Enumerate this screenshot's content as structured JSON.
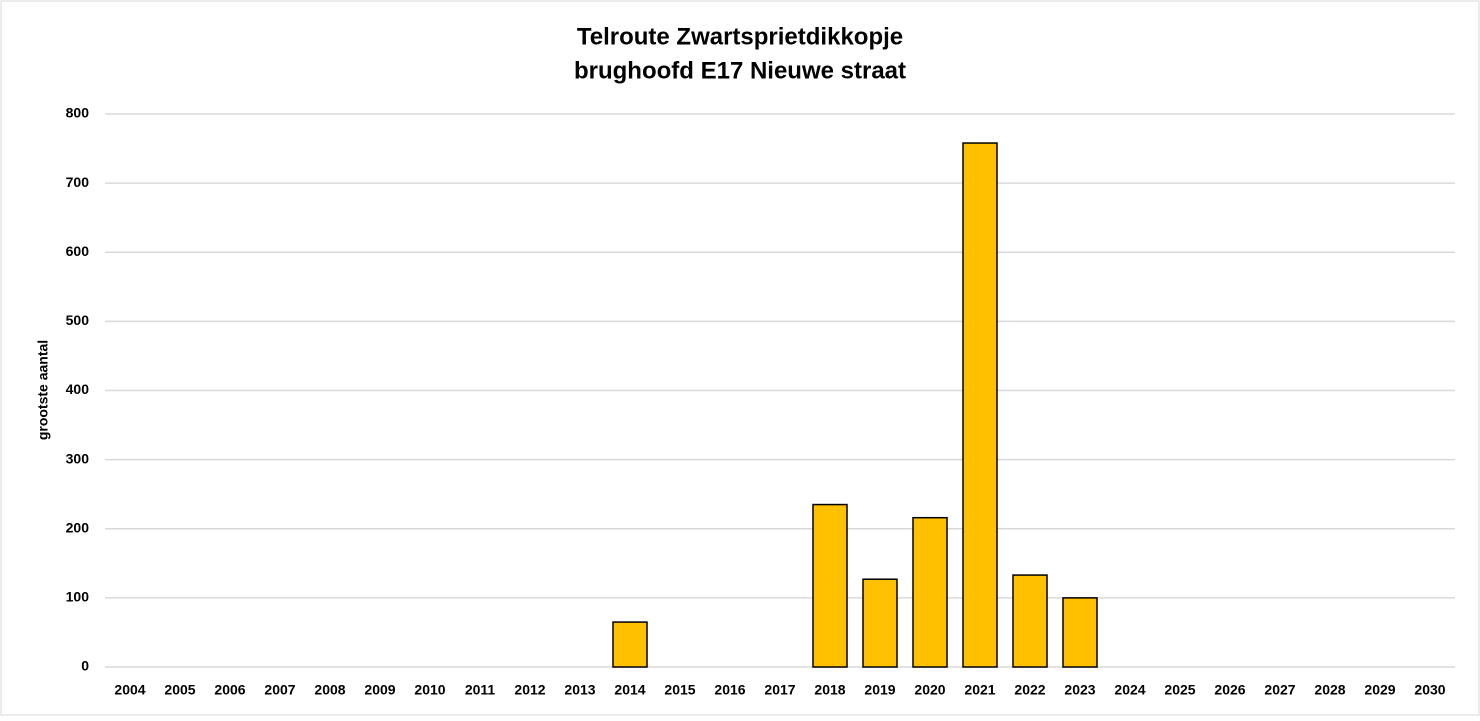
{
  "chart_data": {
    "type": "bar",
    "title": [
      "Telroute Zwartsprietdikkopje",
      "brughoofd E17 Nieuwe straat"
    ],
    "y_label": "grootste aantal",
    "categories": [
      "2004",
      "2005",
      "2006",
      "2007",
      "2008",
      "2009",
      "2010",
      "2011",
      "2012",
      "2013",
      "2014",
      "2015",
      "2016",
      "2017",
      "2018",
      "2019",
      "2020",
      "2021",
      "2022",
      "2023",
      "2024",
      "2025",
      "2026",
      "2027",
      "2028",
      "2029",
      "2030"
    ],
    "values": [
      null,
      null,
      null,
      null,
      null,
      null,
      null,
      null,
      null,
      null,
      65,
      null,
      null,
      null,
      235,
      127,
      216,
      758,
      133,
      100,
      null,
      null,
      null,
      null,
      null,
      null,
      null
    ],
    "color": "#ffc000",
    "ylim": [
      0,
      800
    ],
    "yticks": [
      0,
      100,
      200,
      300,
      400,
      500,
      600,
      700,
      800
    ],
    "grid": true
  }
}
